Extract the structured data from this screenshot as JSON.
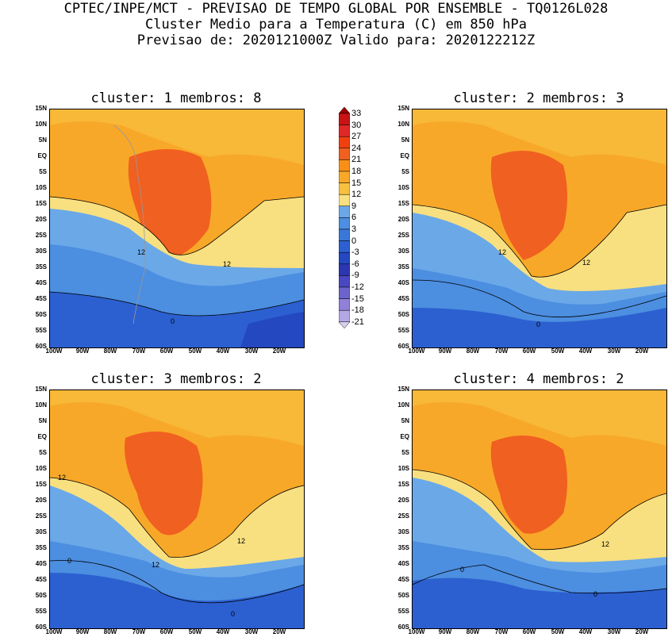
{
  "header": {
    "line1": "CPTEC/INPE/MCT - PREVISAO DE TEMPO GLOBAL POR ENSEMBLE - TQ0126L028",
    "line2": "Cluster Medio para a Temperatura (C) em 850 hPa",
    "line3": "Previsao de: 2020121000Z   Valido para: 2020122212Z"
  },
  "panels": [
    {
      "title": "cluster: 1  membros: 8",
      "contour_labels": [
        "12",
        "12",
        "0"
      ]
    },
    {
      "title": "cluster: 2  membros: 3",
      "contour_labels": [
        "12",
        "12",
        "0"
      ]
    },
    {
      "title": "cluster: 3  membros: 2",
      "contour_labels": [
        "12",
        "12",
        "12",
        "0",
        "0"
      ]
    },
    {
      "title": "cluster: 4  membros: 2",
      "contour_labels": [
        "12",
        "0",
        "0"
      ]
    }
  ],
  "lat_labels": [
    "15N",
    "10N",
    "5N",
    "EQ",
    "5S",
    "10S",
    "15S",
    "20S",
    "25S",
    "30S",
    "35S",
    "40S",
    "45S",
    "50S",
    "55S",
    "60S"
  ],
  "lon_labels": [
    "100W",
    "90W",
    "80W",
    "70W",
    "60W",
    "50W",
    "40W",
    "30W",
    "20W"
  ],
  "colorbar": {
    "labels": [
      "33",
      "30",
      "27",
      "24",
      "21",
      "18",
      "15",
      "12",
      "9",
      "6",
      "3",
      "0",
      "-3",
      "-6",
      "-9",
      "-12",
      "-15",
      "-18",
      "-21"
    ],
    "colors": [
      "#a00000",
      "#c81414",
      "#e02828",
      "#f04010",
      "#f06020",
      "#f89018",
      "#f8a828",
      "#f8c040",
      "#f8e080",
      "#6aa8e8",
      "#4c8ee0",
      "#3a78d8",
      "#2c60d0",
      "#2448c0",
      "#2c36b0",
      "#4a48c0",
      "#6c64cc",
      "#9080d8",
      "#b4a8e4",
      "#d8d0f0"
    ]
  }
}
